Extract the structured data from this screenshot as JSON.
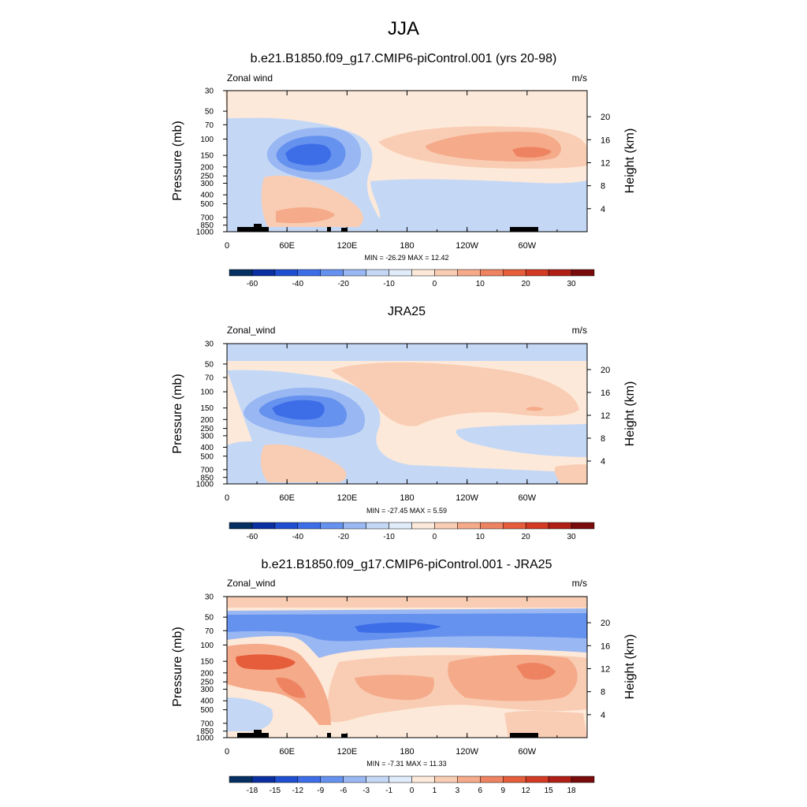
{
  "figure_title": "JJA",
  "chart_data": [
    {
      "type": "heatmap",
      "title": "b.e21.B1850.f09_g17.CMIP6-piControl.001 (yrs 20-98)",
      "left_label": "Zonal wind",
      "right_label": "m/s",
      "ylabel": "Pressure (mb)",
      "y2label": "Height (km)",
      "x_ticks": [
        "0",
        "60E",
        "120E",
        "180",
        "120W",
        "60W"
      ],
      "y_ticks": [
        "30",
        "50",
        "70",
        "100",
        "150",
        "200",
        "250",
        "300",
        "400",
        "500",
        "700",
        "850",
        "1000"
      ],
      "y2_ticks": [
        "20",
        "16",
        "12",
        "8",
        "4"
      ],
      "stats": "MIN = -26.29  MAX =  12.42",
      "colorbar_labels": [
        "-60",
        "-40",
        "-20",
        "-10",
        "0",
        "10",
        "20",
        "30"
      ],
      "colorbar_colors": [
        "#053061",
        "#0a2fa0",
        "#1f4fd0",
        "#3d6ee8",
        "#6692ef",
        "#99b7f2",
        "#c4d8f6",
        "#e1ecfb",
        "#fde9d9",
        "#f9cdb3",
        "#f5aa8a",
        "#ee8361",
        "#e65d3b",
        "#d23a23",
        "#b01f16",
        "#7a0b0b"
      ],
      "land_markers": "black bars at surface",
      "features": [
        {
          "kind": "blob",
          "lon": 80,
          "p": 150,
          "value": -26.29,
          "level": "strong"
        },
        {
          "kind": "blob",
          "lon": 275,
          "p": 150,
          "value": 12.42,
          "level": "moderate"
        }
      ]
    },
    {
      "type": "heatmap",
      "title": "JRA25",
      "left_label": "Zonal_wind",
      "right_label": "m/s",
      "ylabel": "Pressure (mb)",
      "y2label": "Height (km)",
      "x_ticks": [
        "0",
        "60E",
        "120E",
        "180",
        "120W",
        "60W"
      ],
      "y_ticks": [
        "30",
        "50",
        "70",
        "100",
        "150",
        "200",
        "250",
        "300",
        "400",
        "500",
        "700",
        "850",
        "1000"
      ],
      "y2_ticks": [
        "20",
        "16",
        "12",
        "8",
        "4"
      ],
      "stats": "MIN = -27.45  MAX =   5.59",
      "colorbar_labels": [
        "-60",
        "-40",
        "-20",
        "-10",
        "0",
        "10",
        "20",
        "30"
      ],
      "features": [
        {
          "kind": "blob",
          "lon": 75,
          "p": 150,
          "value": -27.45,
          "level": "strong"
        },
        {
          "kind": "blob",
          "lon": 200,
          "p": 80,
          "value": 5.59,
          "level": "weak"
        }
      ]
    },
    {
      "type": "heatmap",
      "title": "b.e21.B1850.f09_g17.CMIP6-piControl.001 - JRA25",
      "left_label": "Zonal_wind",
      "right_label": "m/s",
      "ylabel": "Pressure (mb)",
      "y2label": "Height (km)",
      "x_ticks": [
        "0",
        "60E",
        "120E",
        "180",
        "120W",
        "60W"
      ],
      "y_ticks": [
        "30",
        "50",
        "70",
        "100",
        "150",
        "200",
        "250",
        "300",
        "400",
        "500",
        "700",
        "850",
        "1000"
      ],
      "y2_ticks": [
        "20",
        "16",
        "12",
        "8",
        "4"
      ],
      "stats": "MIN =  -7.31  MAX =  11.33",
      "colorbar_labels": [
        "-18",
        "-15",
        "-12",
        "-9",
        "-6",
        "-3",
        "-1",
        "0",
        "1",
        "3",
        "6",
        "9",
        "12",
        "15",
        "18"
      ],
      "features": [
        {
          "kind": "band",
          "p": 60,
          "value": -7.31,
          "level": "negative"
        },
        {
          "kind": "blob",
          "lon": 30,
          "p": 150,
          "value": 11.33,
          "level": "strong"
        }
      ]
    }
  ]
}
